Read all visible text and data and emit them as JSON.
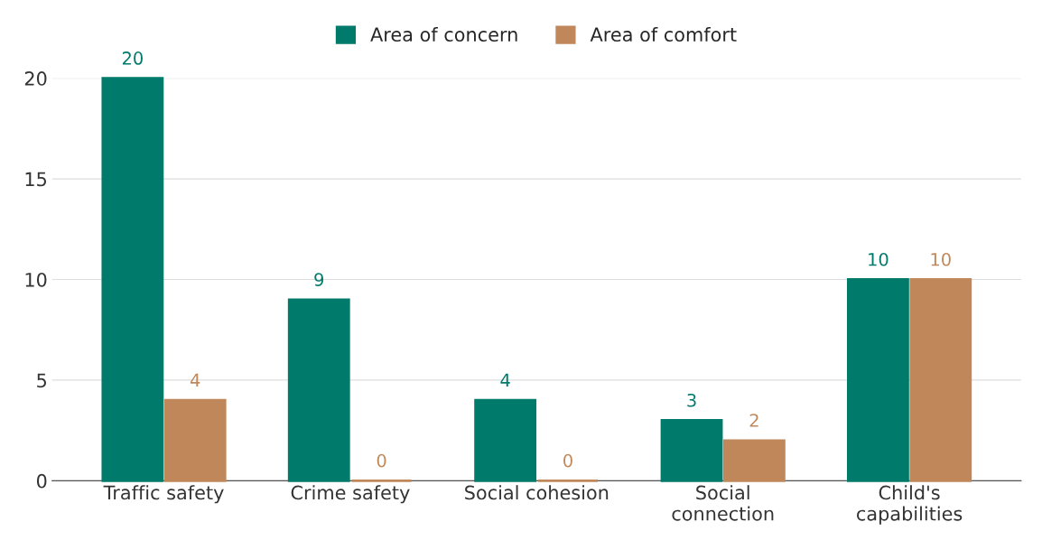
{
  "chart_data": {
    "type": "bar",
    "categories": [
      "Traffic safety",
      "Crime safety",
      "Social cohesion",
      "Social\nconnection",
      "Child's\ncapabilities"
    ],
    "series": [
      {
        "name": "Area of concern",
        "color": "#007a6a",
        "values": [
          20,
          9,
          4,
          3,
          10
        ]
      },
      {
        "name": "Area of comfort",
        "color": "#c0875a",
        "values": [
          4,
          0,
          0,
          2,
          10
        ]
      }
    ],
    "ylim": [
      0,
      20
    ],
    "yticks": [
      0,
      5,
      10,
      15,
      20
    ],
    "grid": "y",
    "legend": "top",
    "data_labels": true
  }
}
